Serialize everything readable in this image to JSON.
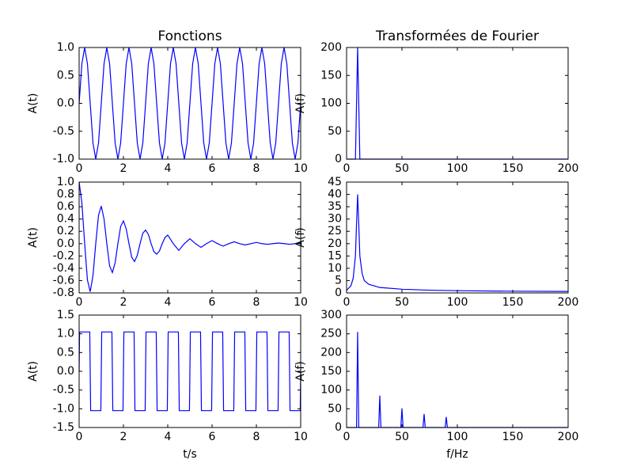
{
  "chart_data": [
    {
      "type": "line",
      "title": "Fonctions",
      "ylabel": "A(t)",
      "color": "#0000ff",
      "x": [
        0,
        0.125,
        0.25,
        0.375,
        0.5,
        0.625,
        0.75,
        0.875,
        1,
        1.125,
        1.25,
        1.375,
        1.5,
        1.625,
        1.75,
        1.875,
        2,
        2.125,
        2.25,
        2.375,
        2.5,
        2.625,
        2.75,
        2.875,
        3,
        3.125,
        3.25,
        3.375,
        3.5,
        3.625,
        3.75,
        3.875,
        4,
        4.125,
        4.25,
        4.375,
        4.5,
        4.625,
        4.75,
        4.875,
        5,
        5.125,
        5.25,
        5.375,
        5.5,
        5.625,
        5.75,
        5.875,
        6,
        6.125,
        6.25,
        6.375,
        6.5,
        6.625,
        6.75,
        6.875,
        7,
        7.125,
        7.25,
        7.375,
        7.5,
        7.625,
        7.75,
        7.875,
        8,
        8.125,
        8.25,
        8.375,
        8.5,
        8.625,
        8.75,
        8.875,
        9,
        9.125,
        9.25,
        9.375,
        9.5,
        9.625,
        9.75,
        9.875,
        10
      ],
      "values": [
        0,
        0.71,
        1,
        0.71,
        0,
        -0.71,
        -1,
        -0.71,
        0,
        0.71,
        1,
        0.71,
        0,
        -0.71,
        -1,
        -0.71,
        0,
        0.71,
        1,
        0.71,
        0,
        -0.71,
        -1,
        -0.71,
        0,
        0.71,
        1,
        0.71,
        0,
        -0.71,
        -1,
        -0.71,
        0,
        0.71,
        1,
        0.71,
        0,
        -0.71,
        -1,
        -0.71,
        0,
        0.71,
        1,
        0.71,
        0,
        -0.71,
        -1,
        -0.71,
        0,
        0.71,
        1,
        0.71,
        0,
        -0.71,
        -1,
        -0.71,
        0,
        0.71,
        1,
        0.71,
        0,
        -0.71,
        -1,
        -0.71,
        0,
        0.71,
        1,
        0.71,
        0,
        -0.71,
        -1,
        -0.71,
        0,
        0.71,
        1,
        0.71,
        0,
        -0.71,
        -1,
        -0.71,
        0
      ],
      "xlim": [
        0,
        10
      ],
      "xticks": [
        0,
        2,
        4,
        6,
        8,
        10
      ],
      "ylim": [
        -1,
        1
      ],
      "yticks": [
        {
          "value": -1,
          "label": "-1.0"
        },
        -0.5,
        {
          "value": 0,
          "label": "0.0"
        },
        0.5,
        {
          "value": 1,
          "label": "1.0"
        }
      ]
    },
    {
      "type": "line",
      "title": "Transformées de Fourier",
      "ylabel": "A(f)",
      "color": "#0000ff",
      "x": [
        0,
        8,
        10,
        12,
        200
      ],
      "values": [
        0,
        0,
        200,
        0,
        0
      ],
      "xlim": [
        0,
        200
      ],
      "xticks": [
        0,
        50,
        100,
        150,
        200
      ],
      "ylim": [
        0,
        200
      ],
      "yticks": [
        0,
        50,
        100,
        150,
        200
      ]
    },
    {
      "type": "line",
      "ylabel": "A(t)",
      "color": "#0000ff",
      "x": [
        0,
        0.125,
        0.25,
        0.375,
        0.5,
        0.625,
        0.75,
        0.875,
        1,
        1.125,
        1.25,
        1.375,
        1.5,
        1.625,
        1.75,
        1.875,
        2,
        2.125,
        2.25,
        2.375,
        2.5,
        2.625,
        2.75,
        2.875,
        3,
        3.125,
        3.25,
        3.375,
        3.5,
        3.625,
        3.75,
        3.875,
        4,
        4.25,
        4.5,
        4.75,
        5,
        5.25,
        5.5,
        5.75,
        6,
        6.25,
        6.5,
        6.75,
        7,
        7.25,
        7.5,
        7.75,
        8,
        8.25,
        8.5,
        8.75,
        9,
        9.25,
        9.5,
        9.75,
        10
      ],
      "values": [
        1,
        0.66,
        0,
        -0.59,
        -0.78,
        -0.52,
        0,
        0.46,
        0.61,
        0.4,
        0,
        -0.36,
        -0.47,
        -0.31,
        0,
        0.28,
        0.37,
        0.24,
        0,
        -0.22,
        -0.29,
        -0.19,
        0,
        0.17,
        0.22,
        0.15,
        0,
        -0.13,
        -0.17,
        -0.12,
        0,
        0.1,
        0.14,
        0,
        -0.11,
        0,
        0.08,
        0,
        -0.06,
        0,
        0.05,
        0,
        -0.04,
        0,
        0.03,
        0,
        -0.02,
        0,
        0.02,
        0,
        -0.01,
        0,
        0.01,
        0,
        -0.01,
        0,
        0.01
      ],
      "xlim": [
        0,
        10
      ],
      "xticks": [
        0,
        2,
        4,
        6,
        8,
        10
      ],
      "ylim": [
        -0.8,
        1
      ],
      "yticks": [
        -0.8,
        -0.6,
        -0.4,
        -0.2,
        {
          "value": 0,
          "label": "0.0"
        },
        0.2,
        0.4,
        0.6,
        0.8,
        {
          "value": 1,
          "label": "1.0"
        }
      ]
    },
    {
      "type": "line",
      "ylabel": "A(f)",
      "color": "#0000ff",
      "x": [
        0,
        2,
        4,
        6,
        8,
        9,
        10,
        11,
        12,
        14,
        16,
        20,
        30,
        50,
        75,
        100,
        150,
        200
      ],
      "values": [
        1,
        2,
        3,
        6,
        15,
        28,
        40,
        28,
        15,
        8,
        5,
        3.5,
        2.2,
        1.5,
        1.1,
        0.9,
        0.7,
        0.6
      ],
      "xlim": [
        0,
        200
      ],
      "xticks": [
        0,
        50,
        100,
        150,
        200
      ],
      "ylim": [
        0,
        45
      ],
      "yticks": [
        0,
        5,
        10,
        15,
        20,
        25,
        30,
        35,
        40,
        45
      ]
    },
    {
      "type": "line",
      "ylabel": "A(t)",
      "xlabel": "t/s",
      "color": "#0000ff",
      "x": [
        0,
        0.02,
        0.48,
        0.52,
        0.98,
        1.02,
        1.48,
        1.52,
        1.98,
        2.02,
        2.48,
        2.52,
        2.98,
        3.02,
        3.48,
        3.52,
        3.98,
        4.02,
        4.48,
        4.52,
        4.98,
        5.02,
        5.48,
        5.52,
        5.98,
        6.02,
        6.48,
        6.52,
        6.98,
        7.02,
        7.48,
        7.52,
        7.98,
        8.02,
        8.48,
        8.52,
        8.98,
        9.02,
        9.48,
        9.52,
        9.98,
        10
      ],
      "values": [
        0,
        1.05,
        1.05,
        -1.05,
        -1.05,
        1.05,
        1.05,
        -1.05,
        -1.05,
        1.05,
        1.05,
        -1.05,
        -1.05,
        1.05,
        1.05,
        -1.05,
        -1.05,
        1.05,
        1.05,
        -1.05,
        -1.05,
        1.05,
        1.05,
        -1.05,
        -1.05,
        1.05,
        1.05,
        -1.05,
        -1.05,
        1.05,
        1.05,
        -1.05,
        -1.05,
        1.05,
        1.05,
        -1.05,
        -1.05,
        1.05,
        1.05,
        -1.05,
        -1.05,
        0
      ],
      "xlim": [
        0,
        10
      ],
      "xticks": [
        0,
        2,
        4,
        6,
        8,
        10
      ],
      "ylim": [
        -1.5,
        1.5
      ],
      "yticks": [
        -1.5,
        {
          "value": -1,
          "label": "-1.0"
        },
        -0.5,
        {
          "value": 0,
          "label": "0.0"
        },
        0.5,
        {
          "value": 1,
          "label": "1.0"
        },
        1.5
      ]
    },
    {
      "type": "line",
      "ylabel": "A(f)",
      "xlabel": "f/Hz",
      "color": "#0000ff",
      "x": [
        0,
        9,
        10,
        11,
        29,
        30,
        31,
        49,
        50,
        51,
        69,
        70,
        71,
        89,
        90,
        91,
        200
      ],
      "values": [
        0,
        0,
        255,
        0,
        0,
        85,
        0,
        0,
        51,
        0,
        0,
        36,
        0,
        0,
        28,
        0,
        0
      ],
      "xlim": [
        0,
        200
      ],
      "xticks": [
        0,
        50,
        100,
        150,
        200
      ],
      "ylim": [
        0,
        300
      ],
      "yticks": [
        0,
        50,
        100,
        150,
        200,
        250,
        300
      ]
    }
  ]
}
